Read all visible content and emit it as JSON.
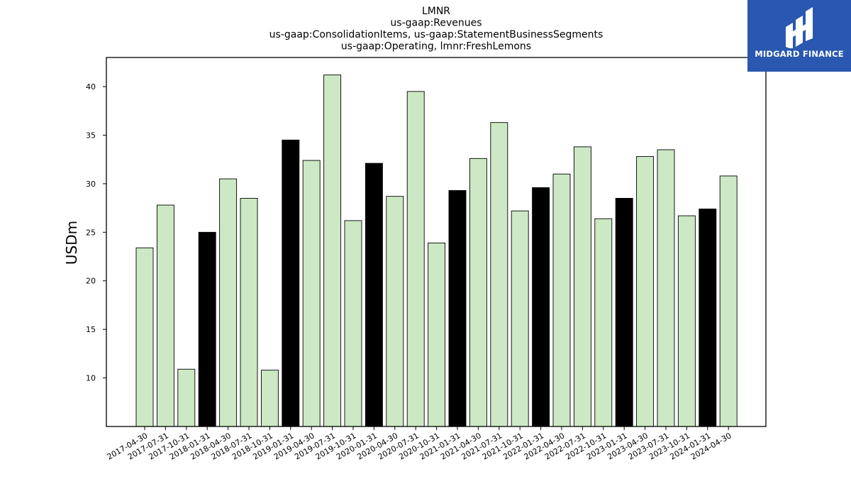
{
  "chart_data": {
    "type": "bar",
    "title_lines": [
      "LMNR",
      "us-gaap:Revenues",
      "us-gaap:ConsolidationItems, us-gaap:StatementBusinessSegments",
      "us-gaap:Operating, lmnr:FreshLemons"
    ],
    "xlabel": "",
    "ylabel": "USDm",
    "ylim": [
      5,
      43
    ],
    "yticks": [
      10,
      15,
      20,
      25,
      30,
      35,
      40
    ],
    "grid": false,
    "colors": {
      "quarter": "#cce8c4",
      "annual": "#000000",
      "edge": "#000000"
    },
    "categories": [
      "2017-04-30",
      "2017-07-31",
      "2017-10-31",
      "2018-01-31",
      "2018-04-30",
      "2018-07-31",
      "2018-10-31",
      "2019-01-31",
      "2019-04-30",
      "2019-07-31",
      "2019-10-31",
      "2020-01-31",
      "2020-04-30",
      "2020-07-31",
      "2020-10-31",
      "2021-01-31",
      "2021-04-30",
      "2021-07-31",
      "2021-10-31",
      "2022-01-31",
      "2022-04-30",
      "2022-07-31",
      "2022-10-31",
      "2023-01-31",
      "2023-04-30",
      "2023-07-31",
      "2023-10-31",
      "2024-01-31",
      "2024-04-30"
    ],
    "values": [
      23.4,
      27.8,
      10.9,
      25.0,
      30.5,
      28.5,
      10.8,
      34.5,
      32.4,
      41.2,
      26.2,
      32.1,
      28.7,
      39.5,
      23.9,
      29.3,
      32.6,
      36.3,
      27.2,
      29.6,
      31.0,
      33.8,
      26.4,
      28.5,
      32.8,
      33.5,
      26.7,
      27.4,
      30.8
    ],
    "highlight": [
      false,
      false,
      false,
      true,
      false,
      false,
      false,
      true,
      false,
      false,
      false,
      true,
      false,
      false,
      false,
      true,
      false,
      false,
      false,
      true,
      false,
      false,
      false,
      true,
      false,
      false,
      false,
      true,
      false
    ]
  },
  "logo": {
    "text": "MIDGARD FINANCE"
  }
}
